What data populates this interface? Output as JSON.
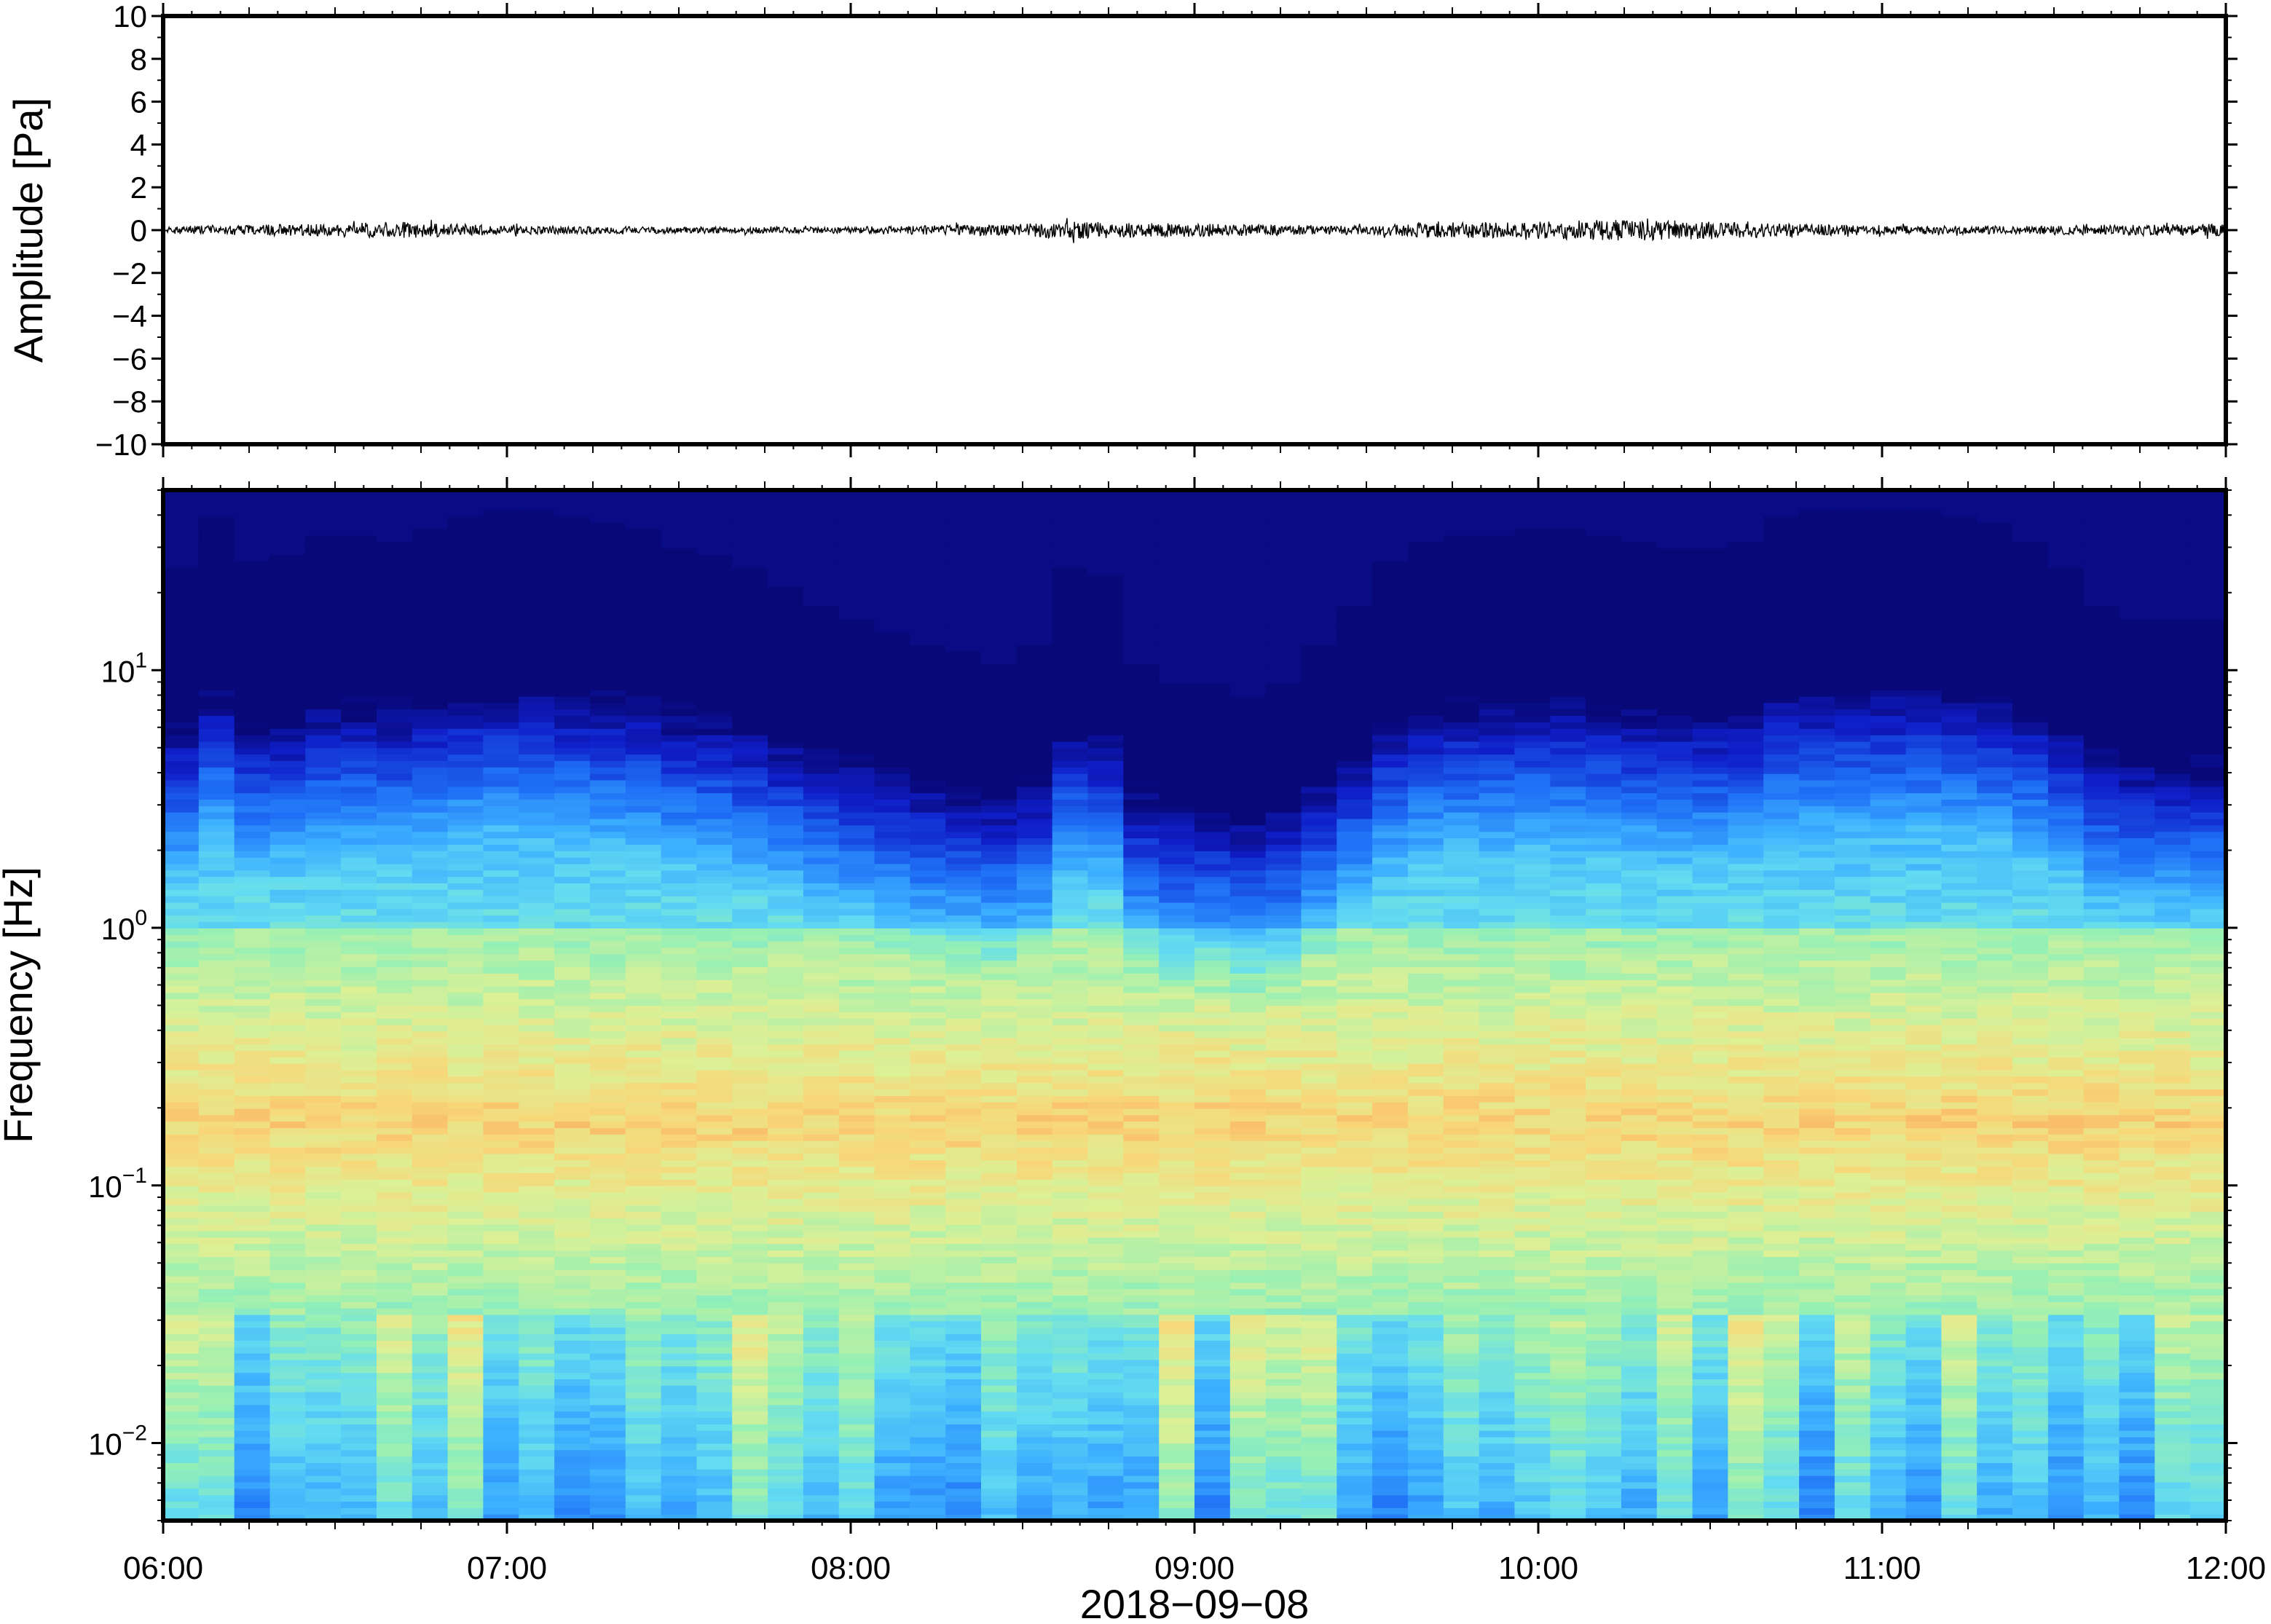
{
  "chart_data": [
    {
      "type": "line",
      "panel": "waveform",
      "ylabel": "Amplitude [Pa]",
      "ylim": [
        -10,
        10
      ],
      "y_ticks": [
        10,
        8,
        6,
        4,
        2,
        0,
        -2,
        -4,
        -6,
        -8,
        -10
      ],
      "y_tick_labels": [
        "10",
        "8",
        "6",
        "4",
        "2",
        "0",
        "−2",
        "−4",
        "−6",
        "−8",
        "−10"
      ],
      "xlim": [
        "06:00",
        "12:00"
      ],
      "grid": false,
      "series": [
        {
          "color": "#000000",
          "x": [
            "06:00",
            "06:30",
            "06:40",
            "06:50",
            "07:00",
            "07:30",
            "08:00",
            "08:30",
            "08:40",
            "09:00",
            "09:30",
            "09:40",
            "10:00",
            "10:15",
            "10:20",
            "10:30",
            "11:00",
            "11:30",
            "12:00"
          ],
          "envelope_pa": [
            0.2,
            0.3,
            0.4,
            0.3,
            0.2,
            0.15,
            0.15,
            0.3,
            0.4,
            0.3,
            0.2,
            0.35,
            0.4,
            0.5,
            0.5,
            0.4,
            0.2,
            0.2,
            0.3
          ]
        }
      ]
    },
    {
      "type": "heatmap",
      "panel": "spectrogram",
      "ylabel": "Frequency [Hz]",
      "xlabel": "2018−09−08",
      "y_scale": "log",
      "ylim": [
        0.005,
        50
      ],
      "y_ticks": [
        0.01,
        0.1,
        1,
        10
      ],
      "y_tick_labels": [
        {
          "base": "10",
          "exp": "−2"
        },
        {
          "base": "10",
          "exp": "−1"
        },
        {
          "base": "10",
          "exp": "0"
        },
        {
          "base": "10",
          "exp": "1"
        }
      ],
      "x_tick_labels": [
        "06:00",
        "07:00",
        "08:00",
        "09:00",
        "10:00",
        "11:00",
        "12:00"
      ],
      "xlim": [
        "06:00",
        "12:00"
      ],
      "colormap": "jet",
      "colors": {
        "high": "#f7c06a",
        "mid": "#8ef0b4",
        "low": "#1e90ff",
        "floor": "#0b0b7a"
      },
      "time_slices": 58,
      "frequency_bins": 160,
      "high_freq_cutoff_hz": [
        14,
        22,
        15,
        16,
        19,
        19,
        18,
        20,
        22,
        23,
        23,
        22,
        21,
        20,
        17,
        16,
        14,
        12,
        10,
        9,
        8,
        7,
        6.5,
        6,
        7,
        14,
        13,
        6,
        5,
        5,
        4.5,
        5,
        7,
        10,
        15,
        18,
        19,
        19,
        20,
        20,
        19,
        18,
        17,
        17,
        18,
        22,
        23,
        23,
        23,
        23,
        22,
        21,
        18,
        14,
        10,
        9,
        9,
        9
      ],
      "peak_band_hz": [
        0.08,
        0.3
      ]
    }
  ]
}
